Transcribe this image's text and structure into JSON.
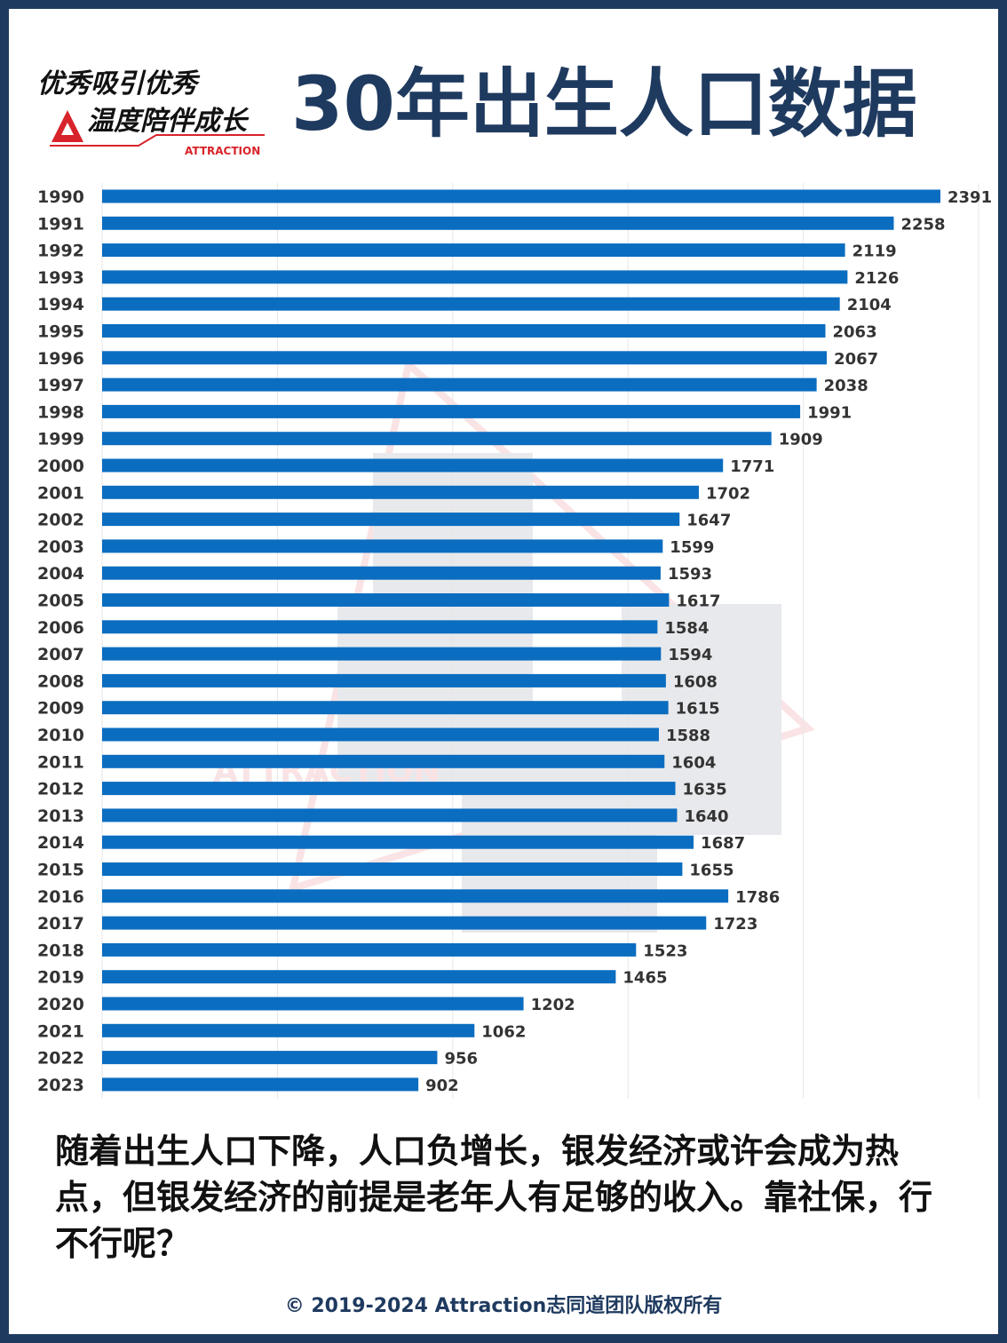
{
  "header": {
    "title": "30年出生人口数据",
    "logo_lines": [
      "优秀吸引优秀",
      "温度陪伴成长"
    ],
    "logo_brand": "ATTRACTION",
    "logo_color": "#d8232a"
  },
  "watermark_text": "ATTRACTION",
  "caption": "随着出生人口下降，人口负增长，银发经济或许会成为热点，但银发经济的前提是老年人有足够的收入。靠社保，行不行呢？",
  "footer": "© 2019-2024 Attraction志同道团队版权所有",
  "colors": {
    "bar": "#0b6dc0",
    "title": "#1f3a5f",
    "frame": "#1f3a5f",
    "grid": "#e6e6e6"
  },
  "chart_data": {
    "type": "bar",
    "orientation": "horizontal",
    "categories": [
      "1990",
      "1991",
      "1992",
      "1993",
      "1994",
      "1995",
      "1996",
      "1997",
      "1998",
      "1999",
      "2000",
      "2001",
      "2002",
      "2003",
      "2004",
      "2005",
      "2006",
      "2007",
      "2008",
      "2009",
      "2010",
      "2011",
      "2012",
      "2013",
      "2014",
      "2015",
      "2016",
      "2017",
      "2018",
      "2019",
      "2020",
      "2021",
      "2022",
      "2023"
    ],
    "values": [
      2391,
      2258,
      2119,
      2126,
      2104,
      2063,
      2067,
      2038,
      1991,
      1909,
      1771,
      1702,
      1647,
      1599,
      1593,
      1617,
      1584,
      1594,
      1608,
      1615,
      1588,
      1604,
      1635,
      1640,
      1687,
      1655,
      1786,
      1723,
      1523,
      1465,
      1202,
      1062,
      956,
      902
    ],
    "xlim": [
      0,
      2500
    ],
    "grid": true,
    "data_labels": true
  }
}
